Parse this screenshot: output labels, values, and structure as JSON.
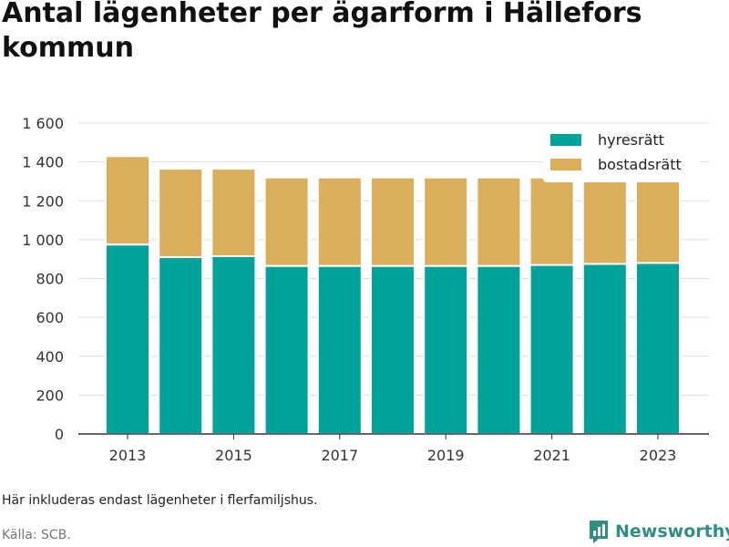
{
  "title": "Antal lägenheter per ägarform i Hällefors kommun",
  "note": "Här inkluderas endast lägenheter i flerfamiljshus.",
  "source": "Källa: SCB.",
  "brand": "Newsworthy",
  "colors": {
    "hyresratt": "#00a39a",
    "bostadsratt": "#dbae5c",
    "grid": "#dddddd",
    "axis": "#333333",
    "brand": "#2f8f84"
  },
  "chart_data": {
    "type": "bar",
    "stacked": true,
    "categories": [
      "2013",
      "2014",
      "2015",
      "2016",
      "2017",
      "2018",
      "2019",
      "2020",
      "2021",
      "2022",
      "2023"
    ],
    "x_tick_labels": [
      "2013",
      "2015",
      "2017",
      "2019",
      "2021",
      "2023"
    ],
    "series": [
      {
        "name": "hyresrätt",
        "values": [
          975,
          910,
          915,
          865,
          865,
          865,
          865,
          865,
          870,
          875,
          880
        ]
      },
      {
        "name": "bostadsrätt",
        "values": [
          455,
          455,
          450,
          455,
          455,
          455,
          455,
          455,
          450,
          425,
          420
        ]
      }
    ],
    "y_ticks": [
      0,
      200,
      400,
      600,
      800,
      1000,
      1200,
      1400,
      1600
    ],
    "y_tick_labels": [
      "0",
      "200",
      "400",
      "600",
      "800",
      "1 000",
      "1 200",
      "1 400",
      "1 600"
    ],
    "ylim": [
      0,
      1600
    ],
    "grid": true,
    "legend": "top-right"
  }
}
